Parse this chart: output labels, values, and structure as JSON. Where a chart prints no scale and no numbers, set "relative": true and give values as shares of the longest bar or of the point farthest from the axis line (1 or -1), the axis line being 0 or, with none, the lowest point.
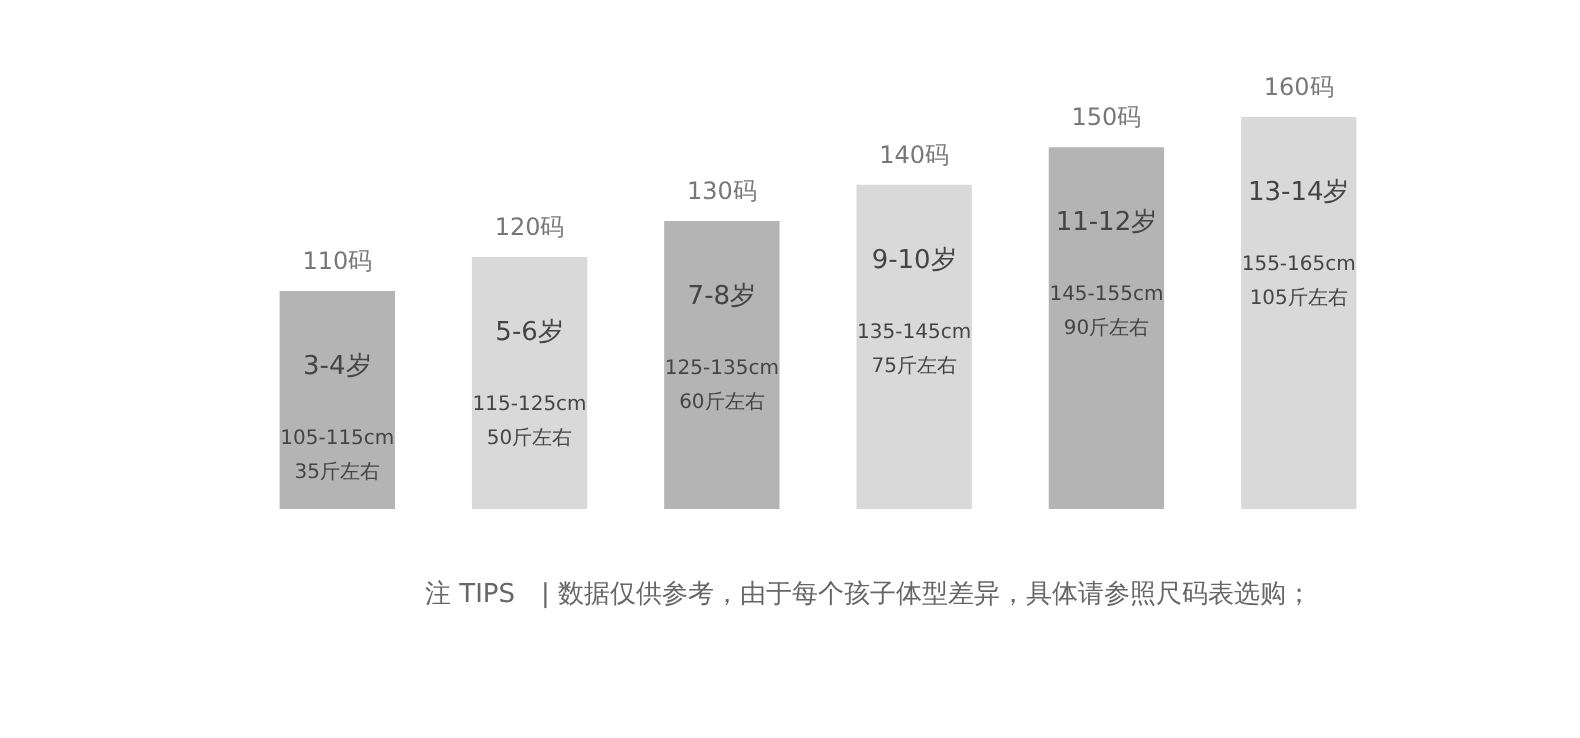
{
  "chart_data": {
    "type": "bar",
    "relative": true,
    "categories": [
      "110码",
      "120码",
      "130码",
      "140码",
      "150码",
      "160码"
    ],
    "values": [
      0.556,
      0.643,
      0.735,
      0.827,
      0.923,
      1
    ],
    "colors": [
      "#b4b4b4",
      "#d9d9d9",
      "#b4b4b4",
      "#d9d9d9",
      "#b4b4b4",
      "#d9d9d9"
    ],
    "annotations": [
      "3-4岁",
      "105-115cm",
      "35斤左右",
      "5-6岁",
      "115-125cm",
      "50斤左右",
      "7-8岁",
      "125-135cm",
      "60斤左右",
      "9-10岁",
      "135-145cm",
      "75斤左右",
      "11-12岁",
      "145-155cm",
      "90斤左右",
      "13-14岁",
      "155-165cm",
      "105斤左右",
      "注 TIPS　|  数据仅供参考，由于每个孩子体型差异，具体请参照尺码表选购；"
    ]
  }
}
